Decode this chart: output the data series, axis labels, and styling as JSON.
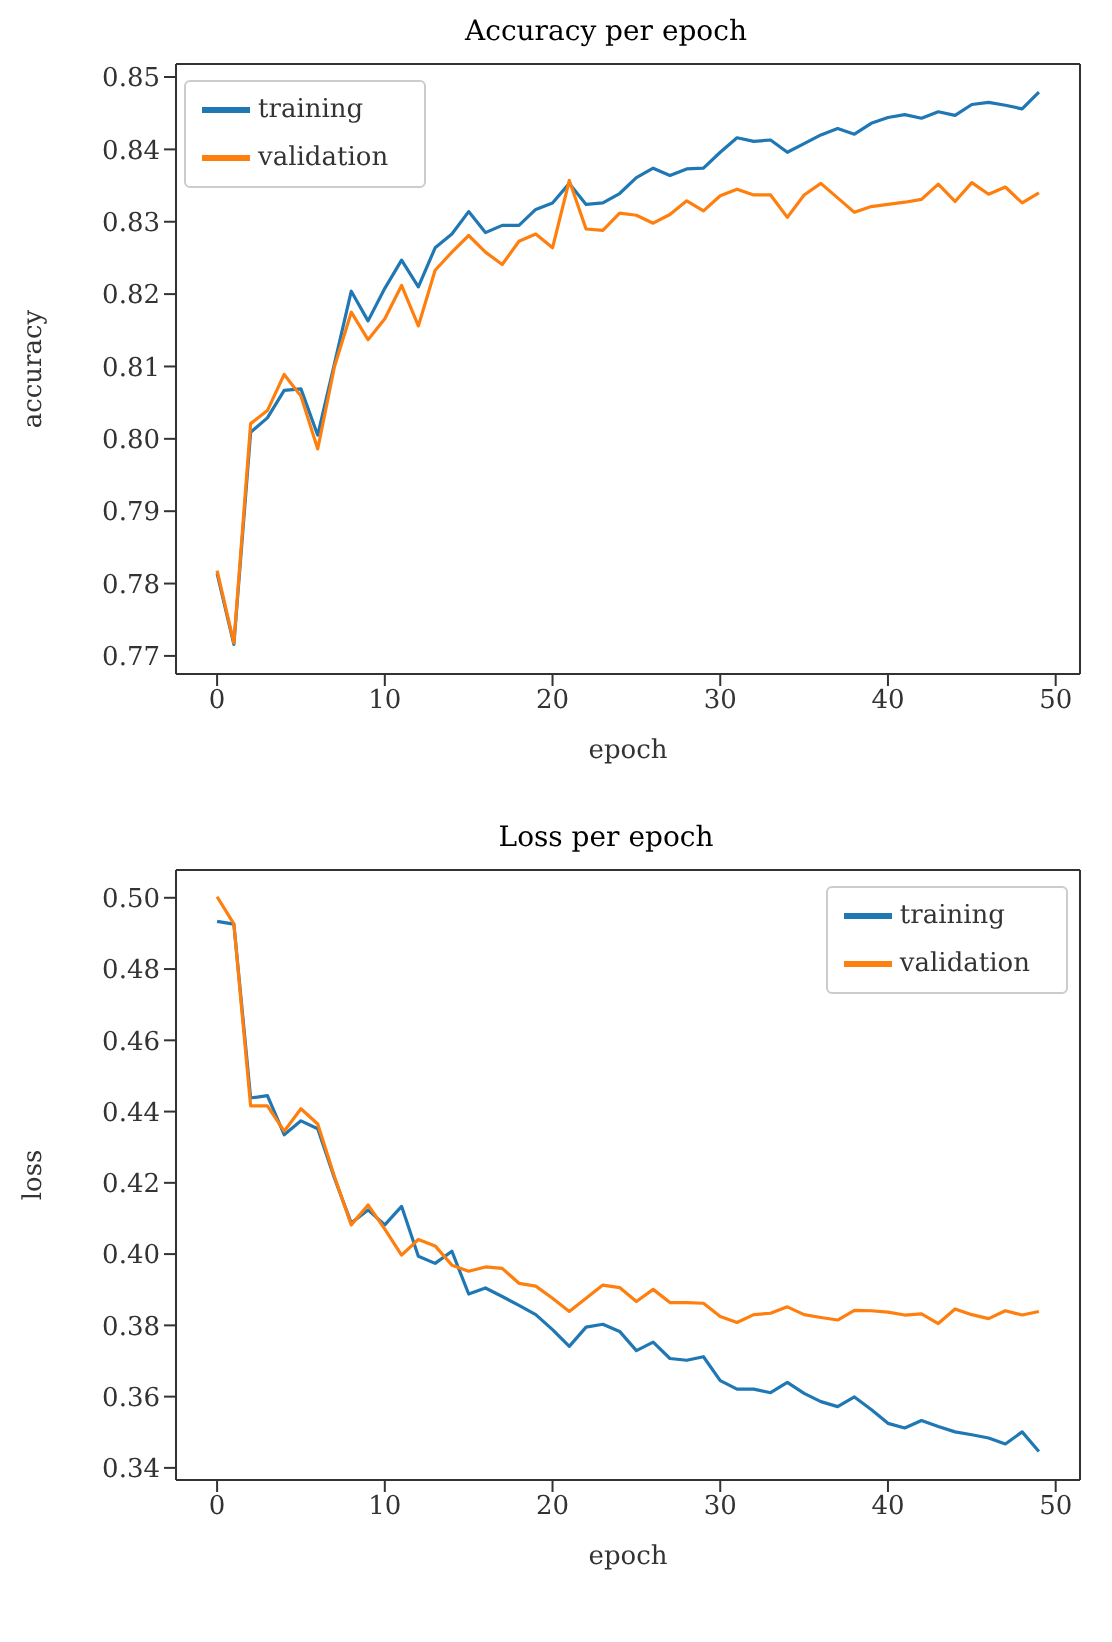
{
  "chart_data": [
    {
      "type": "line",
      "title": "Accuracy per epoch",
      "xlabel": "epoch",
      "ylabel": "accuracy",
      "x": [
        0,
        1,
        2,
        3,
        4,
        5,
        6,
        7,
        8,
        9,
        10,
        11,
        12,
        13,
        14,
        15,
        16,
        17,
        18,
        19,
        20,
        21,
        22,
        23,
        24,
        25,
        26,
        27,
        28,
        29,
        30,
        31,
        32,
        33,
        34,
        35,
        36,
        37,
        38,
        39,
        40,
        41,
        42,
        43,
        44,
        45,
        46,
        47,
        48,
        49
      ],
      "series": [
        {
          "name": "training",
          "color": "#1f77b4",
          "values": [
            0.7814,
            0.7716,
            0.8009,
            0.8029,
            0.8067,
            0.8069,
            0.8005,
            0.8104,
            0.8204,
            0.8163,
            0.8208,
            0.8247,
            0.821,
            0.8264,
            0.8283,
            0.8314,
            0.8285,
            0.8295,
            0.8295,
            0.8317,
            0.8326,
            0.8353,
            0.8324,
            0.8326,
            0.8339,
            0.8361,
            0.8374,
            0.8364,
            0.8373,
            0.8374,
            0.8396,
            0.8416,
            0.8411,
            0.8413,
            0.8396,
            0.8408,
            0.842,
            0.8429,
            0.8421,
            0.8436,
            0.8444,
            0.8448,
            0.8443,
            0.8452,
            0.8447,
            0.8462,
            0.8465,
            0.8461,
            0.8456,
            0.8479
          ]
        },
        {
          "name": "validation",
          "color": "#ff7f0e",
          "values": [
            0.7818,
            0.7718,
            0.8021,
            0.8039,
            0.8089,
            0.8059,
            0.7986,
            0.81,
            0.8175,
            0.8137,
            0.8166,
            0.8212,
            0.8156,
            0.8233,
            0.8258,
            0.8281,
            0.8258,
            0.8241,
            0.8273,
            0.8283,
            0.8264,
            0.8357,
            0.829,
            0.8288,
            0.8312,
            0.8309,
            0.8298,
            0.831,
            0.8329,
            0.8315,
            0.8336,
            0.8345,
            0.8337,
            0.8337,
            0.8306,
            0.8337,
            0.8353,
            0.8333,
            0.8313,
            0.8321,
            0.8324,
            0.8327,
            0.8331,
            0.8352,
            0.8328,
            0.8354,
            0.8338,
            0.8348,
            0.8326,
            0.834
          ]
        }
      ],
      "xlim": [
        -2.45,
        51.45
      ],
      "xticks": [
        0,
        10,
        20,
        30,
        40,
        50
      ],
      "ylim": [
        0.7675,
        0.8518
      ],
      "yticks": [
        0.77,
        0.78,
        0.79,
        {
          "value": 0.8,
          "label": "0.80"
        },
        0.81,
        0.82,
        0.83,
        0.84,
        0.85
      ],
      "legend": "top left",
      "grid": false,
      "marker": "none",
      "line_style": "solid"
    },
    {
      "type": "line",
      "title": "Loss per epoch",
      "xlabel": "epoch",
      "ylabel": "loss",
      "x": [
        0,
        1,
        2,
        3,
        4,
        5,
        6,
        7,
        8,
        9,
        10,
        11,
        12,
        13,
        14,
        15,
        16,
        17,
        18,
        19,
        20,
        21,
        22,
        23,
        24,
        25,
        26,
        27,
        28,
        29,
        30,
        31,
        32,
        33,
        34,
        35,
        36,
        37,
        38,
        39,
        40,
        41,
        42,
        43,
        44,
        45,
        46,
        47,
        48,
        49
      ],
      "series": [
        {
          "name": "training",
          "color": "#1f77b4",
          "values": [
            0.4934,
            0.4926,
            0.4438,
            0.4445,
            0.4335,
            0.4374,
            0.4352,
            0.4213,
            0.4087,
            0.4124,
            0.4082,
            0.4134,
            0.3994,
            0.3974,
            0.4008,
            0.3888,
            0.3905,
            0.3881,
            0.3856,
            0.383,
            0.3788,
            0.3741,
            0.3795,
            0.3803,
            0.3783,
            0.3729,
            0.3753,
            0.3707,
            0.3702,
            0.3712,
            0.3645,
            0.3621,
            0.3621,
            0.3611,
            0.364,
            0.3609,
            0.3586,
            0.3572,
            0.3599,
            0.3564,
            0.3525,
            0.3512,
            0.3533,
            0.3516,
            0.3501,
            0.3493,
            0.3484,
            0.3467,
            0.3501,
            0.3446
          ]
        },
        {
          "name": "validation",
          "color": "#ff7f0e",
          "values": [
            0.5003,
            0.4927,
            0.4416,
            0.4416,
            0.4345,
            0.4408,
            0.4365,
            0.4217,
            0.4082,
            0.4138,
            0.407,
            0.3997,
            0.4041,
            0.4023,
            0.3969,
            0.3952,
            0.3964,
            0.396,
            0.3918,
            0.391,
            0.3876,
            0.3839,
            0.3876,
            0.3913,
            0.3906,
            0.3867,
            0.3901,
            0.3864,
            0.3864,
            0.3862,
            0.3825,
            0.3808,
            0.383,
            0.3834,
            0.3852,
            0.383,
            0.3822,
            0.3815,
            0.3842,
            0.3841,
            0.3837,
            0.3829,
            0.3832,
            0.3805,
            0.3846,
            0.383,
            0.3819,
            0.3841,
            0.3829,
            0.3839
          ]
        }
      ],
      "xlim": [
        -2.45,
        51.45
      ],
      "xticks": [
        0,
        10,
        20,
        30,
        40,
        50
      ],
      "ylim": [
        0.3366,
        0.5078
      ],
      "yticks": [
        0.34,
        0.36,
        0.38,
        {
          "value": 0.4,
          "label": "0.40"
        },
        0.42,
        0.44,
        0.46,
        0.48,
        {
          "value": 0.5,
          "label": "0.50"
        }
      ],
      "legend": "top right",
      "grid": false,
      "marker": "none",
      "line_style": "solid"
    }
  ]
}
